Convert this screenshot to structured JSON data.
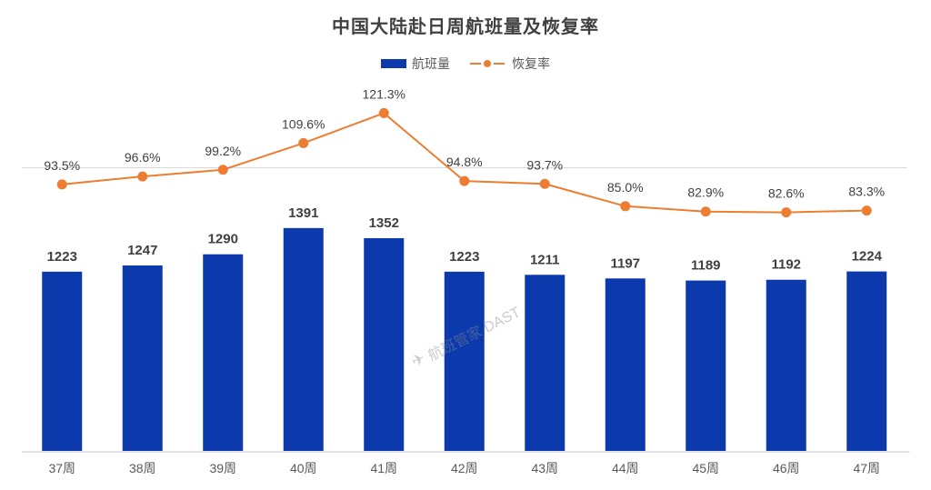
{
  "title": "中国大陆赴日周航班量及恢复率",
  "legend": {
    "bar_label": "航班量",
    "line_label": "恢复率"
  },
  "watermark": {
    "logo": "✈",
    "text": "航班管家 DAST"
  },
  "colors": {
    "bar": "#0C3AAD",
    "line": "#ED7D31",
    "grid": "#D9D9D9",
    "axis_line": "#D9D9D9",
    "title_text": "#404040",
    "value_label": "#404040",
    "axis_label": "#595959",
    "legend_text": "#595959",
    "watermark": "rgba(140,140,140,0.45)",
    "background": "#FFFFFF"
  },
  "chart_data": {
    "type": "bar",
    "combo": "bar+line",
    "title": "中国大陆赴日周航班量及恢复率",
    "categories": [
      "37周",
      "38周",
      "39周",
      "40周",
      "41周",
      "42周",
      "43周",
      "44周",
      "45周",
      "46周",
      "47周"
    ],
    "series": [
      {
        "name": "航班量",
        "type": "bar",
        "values": [
          1223,
          1247,
          1290,
          1391,
          1352,
          1223,
          1211,
          1197,
          1189,
          1192,
          1224
        ]
      },
      {
        "name": "恢复率",
        "type": "line",
        "unit": "%",
        "values": [
          93.5,
          96.6,
          99.2,
          109.6,
          121.3,
          94.8,
          93.7,
          85.0,
          82.9,
          82.6,
          83.3
        ]
      }
    ],
    "legend_position": "top",
    "data_labels": true,
    "gridlines_pct": [
      100
    ],
    "xlabel": "",
    "ylabel": ""
  }
}
